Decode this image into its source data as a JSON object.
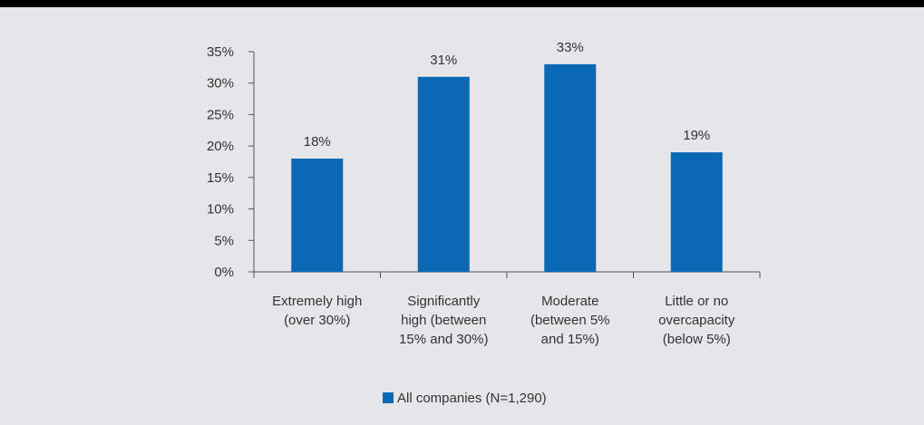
{
  "chart_data": {
    "type": "bar",
    "categories": [
      [
        "Extremely high",
        "(over 30%)"
      ],
      [
        "Significantly",
        "high (between",
        "15% and 30%)"
      ],
      [
        "Moderate",
        "(between 5%",
        "and 15%)"
      ],
      [
        "Little or no",
        "overcapacity",
        "(below 5%)"
      ]
    ],
    "series": [
      {
        "name": "All companies (N=1,290)",
        "values": [
          18,
          31,
          33,
          19
        ],
        "color": "#0b68b5"
      }
    ],
    "data_labels": [
      "18%",
      "31%",
      "33%",
      "19%"
    ],
    "ylim": [
      0,
      35
    ],
    "yticks": [
      0,
      5,
      10,
      15,
      20,
      25,
      30,
      35
    ],
    "ytick_labels": [
      "0%",
      "5%",
      "10%",
      "15%",
      "20%",
      "25%",
      "30%",
      "35%"
    ],
    "legend_position": "bottom",
    "grid": false
  }
}
